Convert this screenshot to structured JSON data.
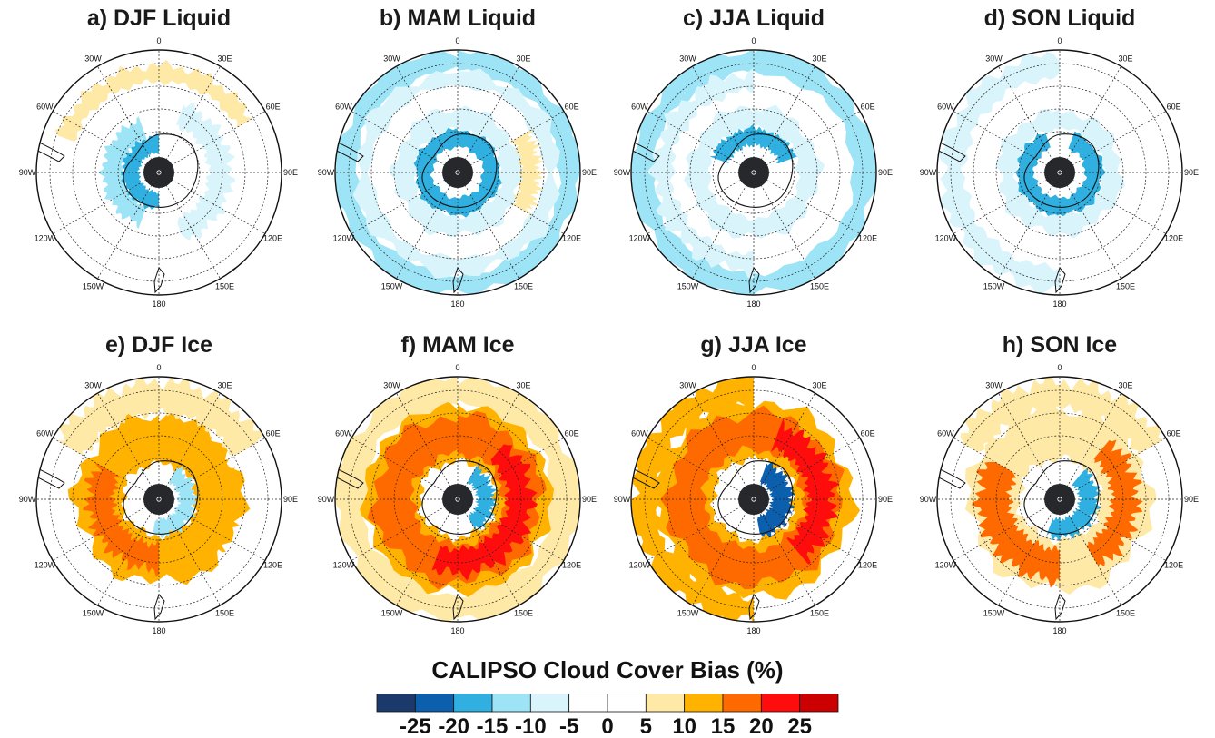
{
  "panels": [
    {
      "title": "a) DJF Liquid",
      "variable": "liquid",
      "season": "DJF"
    },
    {
      "title": "b) MAM Liquid",
      "variable": "liquid",
      "season": "MAM"
    },
    {
      "title": "c) JJA Liquid",
      "variable": "liquid",
      "season": "JJA"
    },
    {
      "title": "d) SON Liquid",
      "variable": "liquid",
      "season": "SON"
    },
    {
      "title": "e) DJF Ice",
      "variable": "ice",
      "season": "DJF"
    },
    {
      "title": "f) MAM Ice",
      "variable": "ice",
      "season": "MAM"
    },
    {
      "title": "g) JJA Ice",
      "variable": "ice",
      "season": "JJA"
    },
    {
      "title": "h) SON Ice",
      "variable": "ice",
      "season": "SON"
    }
  ],
  "longitude_labels": [
    "0",
    "30E",
    "60E",
    "90E",
    "120E",
    "150E",
    "180",
    "150W",
    "120W",
    "90W",
    "60W",
    "30W"
  ],
  "colorbar": {
    "title": "CALIPSO Cloud Cover Bias (%)",
    "tick_labels": [
      "-25",
      "-20",
      "-15",
      "-10",
      "-5",
      "0",
      "5",
      "10",
      "15",
      "20",
      "25"
    ],
    "colors": [
      "#1b3a6b",
      "#0b5fad",
      "#2fb0e0",
      "#9ee4f7",
      "#d9f4fb",
      "#ffffff",
      "#ffffff",
      "#ffe9a6",
      "#ffb300",
      "#ff6a00",
      "#ff0d0d",
      "#cc0000"
    ]
  },
  "map_colors": {
    "land_center": "#26282b",
    "coast": "#111111",
    "neg_light": "#d9f4fb",
    "neg_mid": "#9ee4f7",
    "neg_strong": "#2fb0e0",
    "neg_deep": "#0b5fad",
    "pos_light": "#ffe9a6",
    "pos_mid": "#ffb300",
    "pos_strong": "#ff6a00",
    "pos_max": "#ff0d0d"
  }
}
